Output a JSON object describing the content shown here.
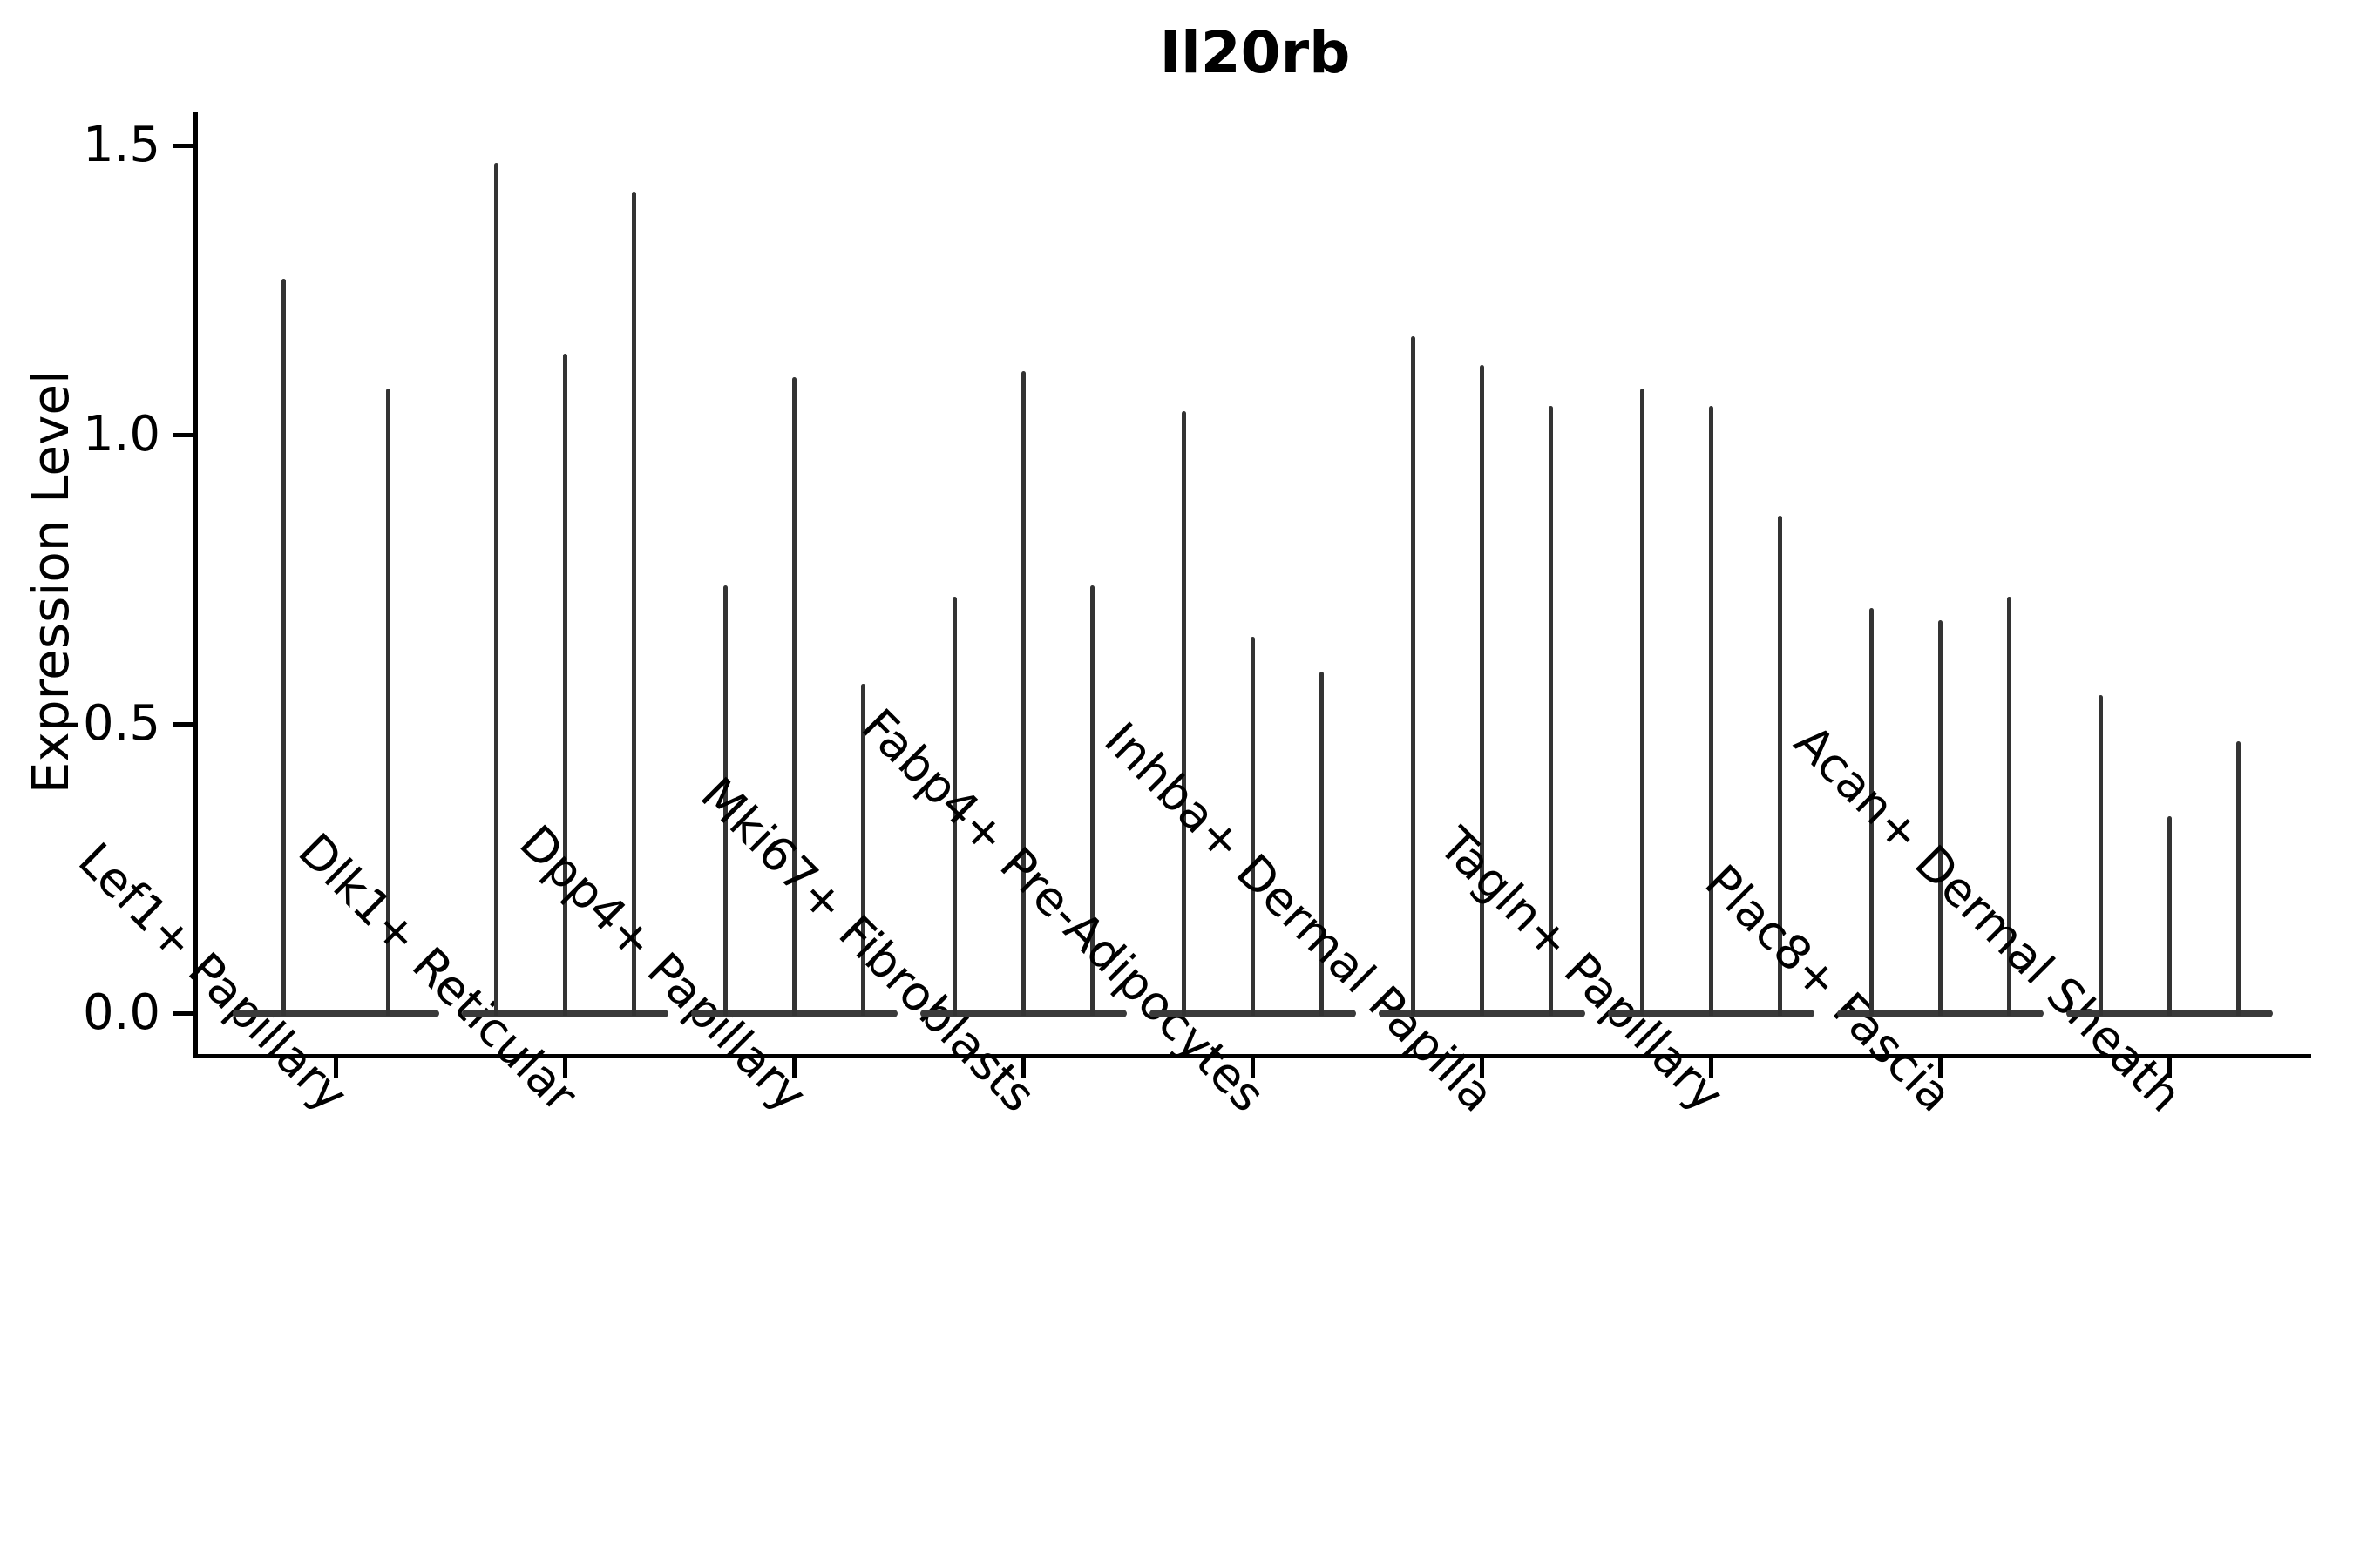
{
  "title": "Il20rb",
  "y_axis": {
    "label": "Expression Level",
    "ticks": [
      {
        "value": 0.0,
        "label": "0.0"
      },
      {
        "value": 0.5,
        "label": "0.5"
      },
      {
        "value": 1.0,
        "label": "1.0"
      },
      {
        "value": 1.5,
        "label": "1.5"
      }
    ]
  },
  "chart_data": {
    "type": "violin",
    "title": "Il20rb",
    "xlabel": "",
    "ylabel": "Expression Level",
    "ylim": [
      -0.07,
      1.57
    ],
    "yticks": [
      0.0,
      0.5,
      1.0,
      1.5
    ],
    "grid": false,
    "legend": "none",
    "violin_color": "#333333",
    "background": "#ffffff",
    "description": "Single-gene violin plot; each cell-type group contains 2-3 extremely thin violins (near-zero density bodies at 0 with narrow spikes up to the max expression value).",
    "categories": [
      "Lef1+ Papillary",
      "Dlk1+ Reticular",
      "Dpp4+ Papillary",
      "Mki67+ Fibroblasts",
      "Fabp4+ Pre-Adipocytes",
      "Inhba+ Dermal Papilla",
      "Tagln+ Papillary",
      "Plac8+ Fascia",
      "Acan+ Dermal Sheath"
    ],
    "series": [
      {
        "name": "Lef1+ Papillary",
        "violin_max_values": [
          1.27,
          1.08
        ]
      },
      {
        "name": "Dlk1+ Reticular",
        "violin_max_values": [
          1.47,
          1.14,
          1.42
        ]
      },
      {
        "name": "Dpp4+ Papillary",
        "violin_max_values": [
          0.74,
          1.1,
          0.57
        ]
      },
      {
        "name": "Mki67+ Fibroblasts",
        "violin_max_values": [
          0.72,
          1.11,
          0.74
        ]
      },
      {
        "name": "Fabp4+ Pre-Adipocytes",
        "violin_max_values": [
          1.04,
          0.65,
          0.59
        ]
      },
      {
        "name": "Inhba+ Dermal Papilla",
        "violin_max_values": [
          1.17,
          1.12,
          1.05
        ]
      },
      {
        "name": "Tagln+ Papillary",
        "violin_max_values": [
          1.08,
          1.05,
          0.86
        ]
      },
      {
        "name": "Plac8+ Fascia",
        "violin_max_values": [
          0.7,
          0.68,
          0.72
        ]
      },
      {
        "name": "Acan+ Dermal Sheath",
        "violin_max_values": [
          0.55,
          0.34,
          0.47
        ]
      }
    ]
  }
}
